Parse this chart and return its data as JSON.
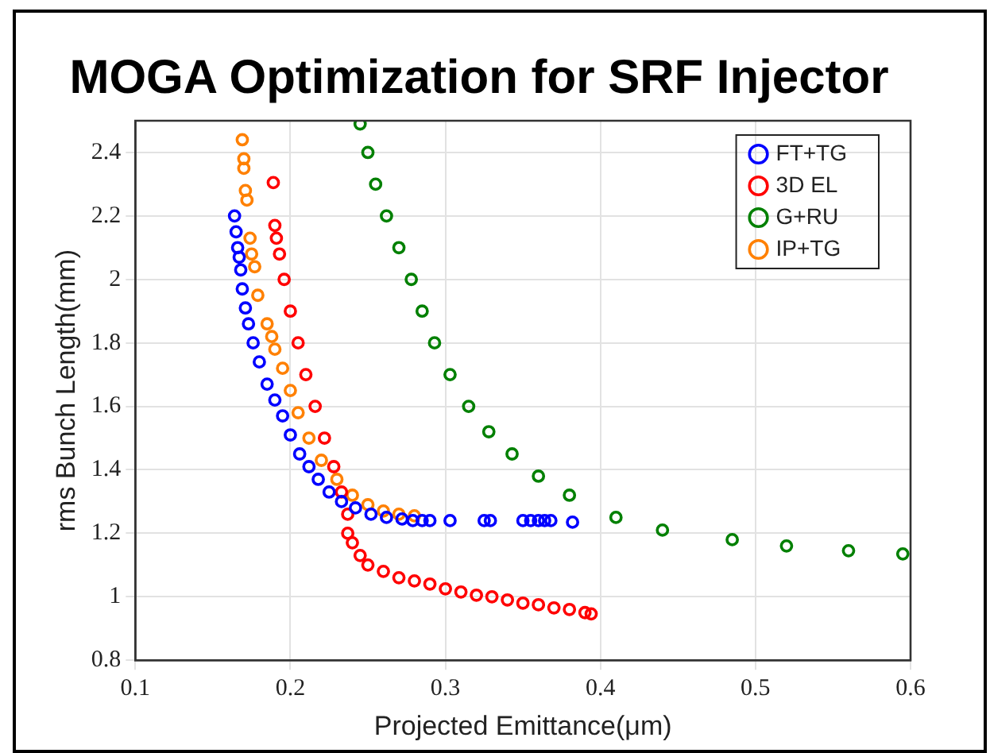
{
  "chart_data": {
    "type": "scatter",
    "title": "MOGA Optimization for SRF Injector",
    "xlabel": "Projected Emittance(μm)",
    "ylabel": "rms Bunch Length(mm)",
    "xlim": [
      0.1,
      0.6
    ],
    "xticks": [
      0.1,
      0.2,
      0.3,
      0.4,
      0.5,
      0.6
    ],
    "ylim": [
      0.8,
      2.5
    ],
    "yticks": [
      0.8,
      1,
      1.2,
      1.4,
      1.6,
      1.8,
      2,
      2.2,
      2.4
    ],
    "grid": true,
    "legend": "top right",
    "marker": "circle",
    "series": [
      {
        "name": "FT+TG",
        "color": "#0000ff",
        "x": [
          0.164,
          0.165,
          0.166,
          0.167,
          0.168,
          0.169,
          0.171,
          0.173,
          0.176,
          0.18,
          0.185,
          0.19,
          0.195,
          0.2,
          0.206,
          0.212,
          0.218,
          0.225,
          0.233,
          0.242,
          0.252,
          0.262,
          0.272,
          0.279,
          0.285,
          0.29,
          0.303,
          0.325,
          0.329,
          0.35,
          0.355,
          0.36,
          0.364,
          0.368,
          0.382
        ],
        "values": [
          2.2,
          2.15,
          2.1,
          2.07,
          2.03,
          1.97,
          1.91,
          1.86,
          1.8,
          1.74,
          1.67,
          1.62,
          1.57,
          1.51,
          1.45,
          1.41,
          1.37,
          1.33,
          1.3,
          1.28,
          1.26,
          1.25,
          1.245,
          1.24,
          1.24,
          1.24,
          1.24,
          1.24,
          1.24,
          1.24,
          1.24,
          1.24,
          1.24,
          1.24,
          1.235
        ]
      },
      {
        "name": "3D EL",
        "color": "#ff0000",
        "x": [
          0.189,
          0.19,
          0.191,
          0.193,
          0.196,
          0.2,
          0.205,
          0.21,
          0.216,
          0.222,
          0.228,
          0.233,
          0.237,
          0.237,
          0.24,
          0.245,
          0.25,
          0.26,
          0.27,
          0.28,
          0.29,
          0.3,
          0.31,
          0.32,
          0.33,
          0.34,
          0.35,
          0.36,
          0.37,
          0.38,
          0.39,
          0.394
        ],
        "values": [
          2.305,
          2.17,
          2.13,
          2.08,
          2.0,
          1.9,
          1.8,
          1.7,
          1.6,
          1.5,
          1.41,
          1.33,
          1.26,
          1.2,
          1.17,
          1.13,
          1.1,
          1.08,
          1.06,
          1.05,
          1.04,
          1.025,
          1.015,
          1.005,
          1.0,
          0.99,
          0.98,
          0.975,
          0.965,
          0.96,
          0.95,
          0.946
        ]
      },
      {
        "name": "G+RU",
        "color": "#008000",
        "x": [
          0.245,
          0.25,
          0.255,
          0.262,
          0.27,
          0.278,
          0.285,
          0.293,
          0.303,
          0.315,
          0.328,
          0.343,
          0.36,
          0.38,
          0.41,
          0.44,
          0.485,
          0.52,
          0.56,
          0.595
        ],
        "values": [
          2.49,
          2.4,
          2.3,
          2.2,
          2.1,
          2.0,
          1.9,
          1.8,
          1.7,
          1.6,
          1.52,
          1.45,
          1.38,
          1.32,
          1.25,
          1.21,
          1.18,
          1.16,
          1.145,
          1.135
        ]
      },
      {
        "name": "IP+TG",
        "color": "#ff8000",
        "x": [
          0.169,
          0.17,
          0.17,
          0.171,
          0.172,
          0.174,
          0.175,
          0.177,
          0.179,
          0.185,
          0.188,
          0.19,
          0.195,
          0.2,
          0.205,
          0.212,
          0.22,
          0.23,
          0.24,
          0.25,
          0.26,
          0.27,
          0.28
        ],
        "values": [
          2.44,
          2.38,
          2.35,
          2.28,
          2.25,
          2.13,
          2.08,
          2.04,
          1.95,
          1.86,
          1.82,
          1.78,
          1.72,
          1.65,
          1.58,
          1.5,
          1.43,
          1.37,
          1.32,
          1.29,
          1.27,
          1.26,
          1.255
        ]
      }
    ]
  }
}
